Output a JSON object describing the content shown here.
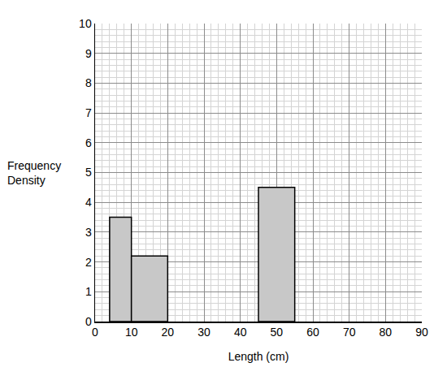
{
  "chart_data": {
    "type": "histogram",
    "bins": [
      4,
      10,
      20,
      45,
      55
    ],
    "values": [
      3.5,
      2.2,
      null,
      4.5
    ],
    "x_label": "Length (cm)",
    "y_label": "Frequency Density",
    "xlim": [
      0,
      90
    ],
    "xticks": [
      0,
      10,
      20,
      30,
      40,
      50,
      60,
      70,
      80,
      90
    ],
    "ylim": [
      0,
      10
    ],
    "yticks": [
      0,
      1,
      2,
      3,
      4,
      5,
      6,
      7,
      8,
      9,
      10
    ],
    "grid": true,
    "color": "#c8c8c8"
  }
}
